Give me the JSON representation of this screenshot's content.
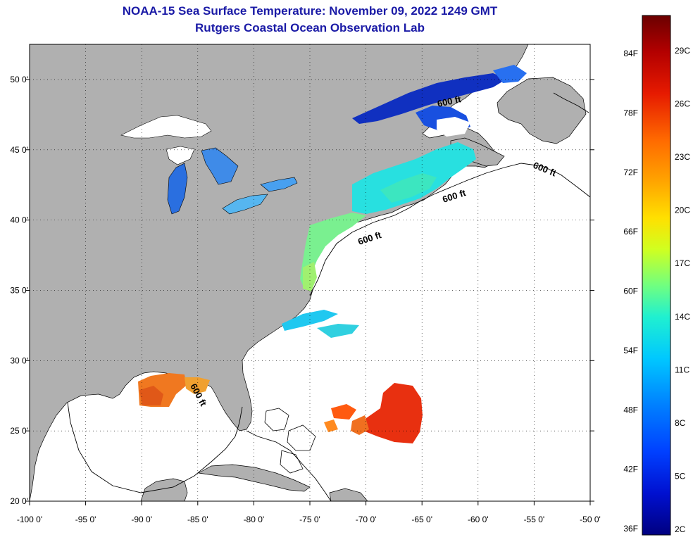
{
  "title": {
    "line1": "NOAA-15 Sea Surface Temperature:  November 09, 2022 1249 GMT",
    "line2": "Rutgers Coastal Ocean Observation Lab"
  },
  "map": {
    "lon_range": [
      -100,
      -50
    ],
    "lat_range": [
      20,
      52.5
    ],
    "lon_ticks": [
      "-100 0'",
      "-95 0'",
      "-90 0'",
      "-85 0'",
      "-80 0'",
      "-75 0'",
      "-70 0'",
      "-65 0'",
      "-60 0'",
      "-55 0'",
      "-50 0'"
    ],
    "lat_ticks": [
      "20 0'",
      "25 0'",
      "30 0'",
      "35 0'",
      "40 0'",
      "45 0'",
      "50 0'"
    ],
    "contour_label": "600 ft",
    "land_color": "#b0b0b0",
    "ocean_color": "#ffffff"
  },
  "colorbar": {
    "fahrenheit_labels": [
      "84F",
      "78F",
      "72F",
      "66F",
      "60F",
      "54F",
      "48F",
      "42F",
      "36F"
    ],
    "celsius_labels": [
      "29C",
      "26C",
      "23C",
      "20C",
      "17C",
      "14C",
      "11C",
      "8C",
      "5C",
      "2C"
    ],
    "colors": [
      "#6b0000",
      "#b30000",
      "#e61a00",
      "#ff5a00",
      "#ff9900",
      "#ffd000",
      "#f0ff10",
      "#b0ff40",
      "#60ff90",
      "#20f0d0",
      "#00d8ff",
      "#0090ff",
      "#0050ff",
      "#0020e0",
      "#0000a0",
      "#000070"
    ]
  }
}
